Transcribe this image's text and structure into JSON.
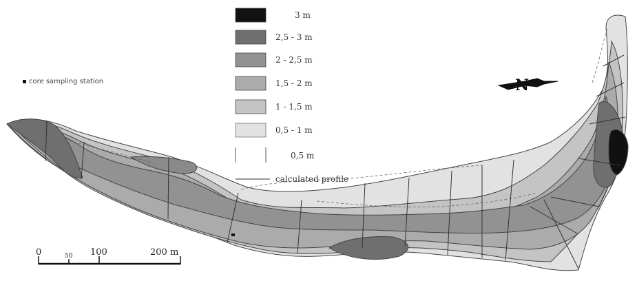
{
  "legend": {
    "items": [
      {
        "label": "3 m",
        "color": "#111111"
      },
      {
        "label": "2,5 - 3 m",
        "color": "#6f6f6f"
      },
      {
        "label": "2 - 2,5 m",
        "color": "#929292"
      },
      {
        "label": "1,5 - 2 m",
        "color": "#ababab"
      },
      {
        "label": "1 - 1,5 m",
        "color": "#c4c4c4"
      },
      {
        "label": "0,5 - 1 m",
        "color": "#e2e2e2"
      },
      {
        "label": "0,5 m",
        "color": "#ffffff"
      }
    ],
    "line_item": {
      "label": "calculated profile"
    }
  },
  "station_legend": {
    "label": "core sampling station"
  },
  "scale_bar": {
    "labels": [
      "0",
      "50",
      "100",
      "200 m"
    ]
  },
  "north_arrow": {
    "label": "N"
  }
}
